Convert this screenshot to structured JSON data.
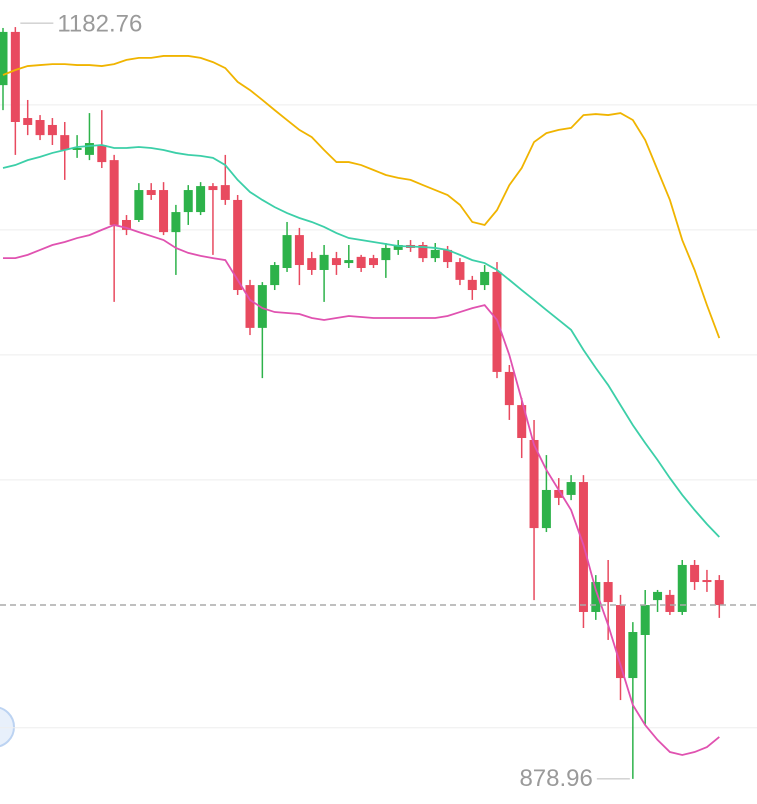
{
  "chart_data": {
    "type": "candlestick",
    "ylim": [
      868.8,
      1193.7
    ],
    "yticks": [
      899.6,
      999.8,
      1050.3,
      1100.8,
      1151.3
    ],
    "grid": true,
    "up_color": "#2db24a",
    "down_color": "#e84a5f",
    "last_price_line": true,
    "candles": {
      "open": [
        1159.3,
        1180.8,
        1146.0,
        1145.2,
        1143.2,
        1139.1,
        1133.1,
        1131.1,
        1135.1,
        1129.0,
        1104.8,
        1104.8,
        1116.9,
        1116.9,
        1099.9,
        1108.0,
        1108.0,
        1118.5,
        1118.9,
        1112.9,
        1078.5,
        1061.2,
        1078.5,
        1085.4,
        1098.7,
        1089.4,
        1084.6,
        1089.4,
        1087.4,
        1089.9,
        1089.4,
        1088.6,
        1092.7,
        1094.7,
        1094.7,
        1089.4,
        1092.7,
        1087.8,
        1080.6,
        1078.5,
        1083.8,
        1043.4,
        1030.0,
        1015.9,
        980.3,
        995.7,
        993.7,
        998.9,
        946.4,
        958.5,
        949.2,
        919.7,
        937.1,
        951.2,
        953.3,
        946.4,
        965.4,
        959.3,
        959.3
      ],
      "close": [
        1180.8,
        1144.4,
        1143.2,
        1139.1,
        1139.1,
        1133.1,
        1133.9,
        1135.9,
        1128.2,
        1102.8,
        1100.8,
        1116.9,
        1114.9,
        1099.9,
        1108.0,
        1116.9,
        1118.5,
        1116.9,
        1112.9,
        1076.5,
        1061.2,
        1078.5,
        1086.6,
        1098.7,
        1086.6,
        1084.6,
        1090.7,
        1086.6,
        1088.6,
        1085.4,
        1086.6,
        1093.5,
        1094.7,
        1093.5,
        1089.4,
        1092.7,
        1087.8,
        1080.6,
        1076.5,
        1083.8,
        1043.4,
        1030.0,
        1016.7,
        980.3,
        995.7,
        992.5,
        998.9,
        946.4,
        958.5,
        950.4,
        919.7,
        938.3,
        949.2,
        954.5,
        946.4,
        965.4,
        958.5,
        958.5,
        949.2
      ],
      "high": [
        1182.4,
        1182.76,
        1153.3,
        1147.2,
        1146.0,
        1144.4,
        1139.1,
        1148.0,
        1149.2,
        1131.1,
        1106.8,
        1119.7,
        1119.7,
        1120.1,
        1110.9,
        1118.9,
        1120.1,
        1119.7,
        1131.1,
        1114.9,
        1080.6,
        1079.7,
        1087.8,
        1104.0,
        1101.6,
        1091.9,
        1094.7,
        1091.9,
        1094.7,
        1090.7,
        1090.7,
        1095.5,
        1096.7,
        1096.7,
        1095.9,
        1095.5,
        1094.3,
        1089.4,
        1082.2,
        1086.6,
        1087.8,
        1046.2,
        1032.9,
        1024.0,
        1009.8,
        1000.5,
        1001.7,
        1001.7,
        961.3,
        967.4,
        953.3,
        942.3,
        955.3,
        955.3,
        955.3,
        967.4,
        967.4,
        963.4,
        961.3
      ],
      "low": [
        1149.2,
        1131.1,
        1139.1,
        1137.1,
        1135.1,
        1121.0,
        1129.9,
        1129.0,
        1125.8,
        1071.7,
        1098.7,
        1104.0,
        1112.9,
        1098.7,
        1082.6,
        1102.8,
        1106.8,
        1090.7,
        1110.9,
        1074.5,
        1058.3,
        1040.9,
        1076.5,
        1083.8,
        1078.5,
        1082.6,
        1071.7,
        1082.6,
        1085.4,
        1083.8,
        1085.4,
        1081.4,
        1090.7,
        1091.9,
        1087.8,
        1087.8,
        1085.4,
        1078.5,
        1072.5,
        1076.5,
        1040.9,
        1024.0,
        1008.6,
        951.2,
        978.7,
        989.6,
        991.6,
        939.9,
        943.2,
        935.1,
        910.8,
        878.96,
        900.7,
        946.4,
        945.2,
        945.2,
        955.3,
        954.5,
        944.0
      ]
    },
    "bands": [
      {
        "color": "#f0b400",
        "values": [
          1163.4,
          1165.4,
          1167.0,
          1167.4,
          1167.8,
          1167.8,
          1167.4,
          1167.4,
          1167.0,
          1167.8,
          1169.5,
          1170.3,
          1170.3,
          1171.1,
          1171.1,
          1171.1,
          1170.3,
          1168.6,
          1166.2,
          1160.6,
          1157.3,
          1153.3,
          1149.2,
          1145.2,
          1141.2,
          1138.3,
          1133.1,
          1128.2,
          1128.2,
          1127.0,
          1125.0,
          1123.0,
          1121.8,
          1121.0,
          1118.9,
          1116.9,
          1114.9,
          1110.9,
          1104.0,
          1102.8,
          1108.8,
          1118.9,
          1125.8,
          1136.3,
          1139.9,
          1141.2,
          1142.0,
          1147.2,
          1147.6,
          1147.2,
          1148.0,
          1145.2,
          1137.1,
          1125.0,
          1112.9,
          1096.7,
          1084.6,
          1070.4,
          1057.1
        ]
      },
      {
        "color": "#3ccfa8",
        "values": [
          1125.8,
          1127.0,
          1129.0,
          1130.3,
          1131.9,
          1133.1,
          1134.3,
          1134.7,
          1135.1,
          1133.9,
          1133.9,
          1134.3,
          1133.9,
          1133.1,
          1131.9,
          1131.1,
          1130.7,
          1129.9,
          1127.0,
          1121.0,
          1116.1,
          1112.9,
          1110.0,
          1107.6,
          1105.6,
          1104.0,
          1102.0,
          1099.5,
          1097.5,
          1096.7,
          1095.9,
          1095.1,
          1094.3,
          1094.1,
          1093.9,
          1093.5,
          1092.7,
          1090.7,
          1088.6,
          1087.4,
          1084.6,
          1080.6,
          1076.5,
          1072.5,
          1068.4,
          1064.4,
          1060.4,
          1052.3,
          1045.0,
          1038.1,
          1030.0,
          1021.9,
          1014.7,
          1007.8,
          1000.5,
          993.7,
          987.6,
          981.9,
          976.7
        ]
      },
      {
        "color": "#e052b0",
        "values": [
          1089.4,
          1089.4,
          1090.7,
          1092.7,
          1094.7,
          1095.9,
          1097.5,
          1098.7,
          1100.8,
          1102.8,
          1101.6,
          1099.9,
          1098.3,
          1096.7,
          1093.5,
          1091.5,
          1090.3,
          1089.4,
          1088.6,
          1080.6,
          1072.5,
          1069.2,
          1067.6,
          1067.2,
          1066.8,
          1065.2,
          1064.4,
          1065.2,
          1066.0,
          1065.6,
          1065.2,
          1065.2,
          1065.2,
          1065.2,
          1065.2,
          1065.2,
          1066.0,
          1067.6,
          1069.2,
          1070.4,
          1064.4,
          1050.2,
          1032.1,
          1013.9,
          1003.8,
          995.7,
          987.6,
          973.5,
          955.3,
          941.1,
          925.0,
          908.8,
          900.7,
          894.7,
          889.8,
          888.6,
          889.8,
          891.8,
          895.9
        ]
      }
    ]
  }
}
